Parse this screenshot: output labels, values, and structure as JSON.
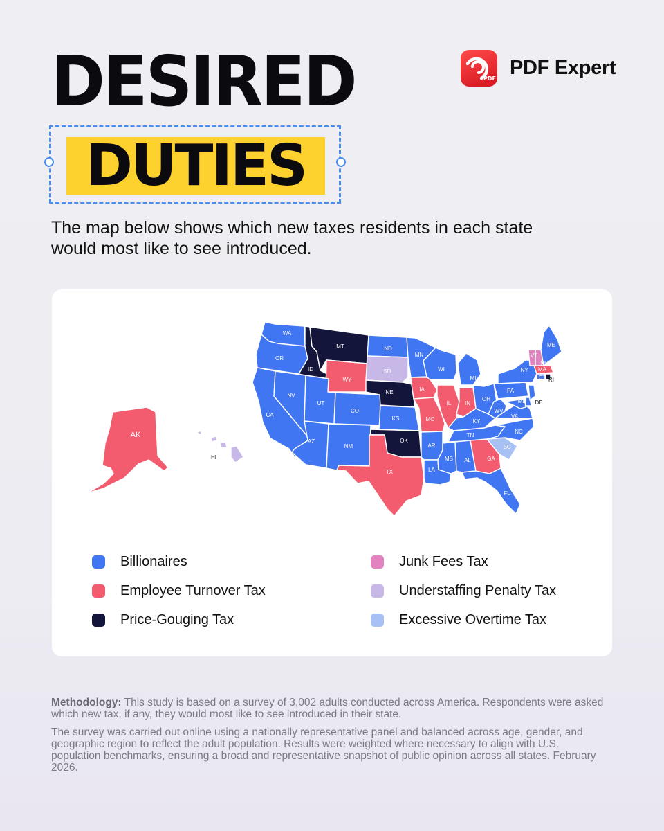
{
  "header": {
    "title_line1": "DESIRED",
    "title_line2": "DUTIES",
    "subtitle": "The map below shows which new taxes residents in each state would most like to see introduced."
  },
  "brand": {
    "name": "PDF Expert",
    "badge": "PDF"
  },
  "colors": {
    "billionaires": "#4176f3",
    "employee_turnover": "#f25c6e",
    "price_gouging": "#13163a",
    "junk_fees": "#e283c0",
    "understaffing": "#c8b8e8",
    "excessive_overtime": "#a7c1f5",
    "title_highlight": "#fdd22e",
    "selection_blue": "#4a8cf0"
  },
  "map": {
    "states": [
      {
        "abbr": "WA",
        "category": "billionaires"
      },
      {
        "abbr": "OR",
        "category": "billionaires"
      },
      {
        "abbr": "CA",
        "category": "billionaires"
      },
      {
        "abbr": "NV",
        "category": "billionaires"
      },
      {
        "abbr": "ID",
        "category": "price_gouging"
      },
      {
        "abbr": "MT",
        "category": "price_gouging"
      },
      {
        "abbr": "WY",
        "category": "employee_turnover"
      },
      {
        "abbr": "UT",
        "category": "billionaires"
      },
      {
        "abbr": "AZ",
        "category": "billionaires"
      },
      {
        "abbr": "CO",
        "category": "billionaires"
      },
      {
        "abbr": "NM",
        "category": "billionaires"
      },
      {
        "abbr": "ND",
        "category": "billionaires"
      },
      {
        "abbr": "SD",
        "category": "understaffing"
      },
      {
        "abbr": "NE",
        "category": "price_gouging"
      },
      {
        "abbr": "KS",
        "category": "billionaires"
      },
      {
        "abbr": "OK",
        "category": "price_gouging"
      },
      {
        "abbr": "TX",
        "category": "employee_turnover"
      },
      {
        "abbr": "MN",
        "category": "billionaires"
      },
      {
        "abbr": "IA",
        "category": "employee_turnover"
      },
      {
        "abbr": "MO",
        "category": "employee_turnover"
      },
      {
        "abbr": "AR",
        "category": "billionaires"
      },
      {
        "abbr": "LA",
        "category": "billionaires"
      },
      {
        "abbr": "WI",
        "category": "billionaires"
      },
      {
        "abbr": "IL",
        "category": "employee_turnover"
      },
      {
        "abbr": "MI",
        "category": "billionaires"
      },
      {
        "abbr": "IN",
        "category": "employee_turnover"
      },
      {
        "abbr": "OH",
        "category": "billionaires"
      },
      {
        "abbr": "KY",
        "category": "billionaires"
      },
      {
        "abbr": "TN",
        "category": "billionaires"
      },
      {
        "abbr": "MS",
        "category": "billionaires"
      },
      {
        "abbr": "AL",
        "category": "billionaires"
      },
      {
        "abbr": "GA",
        "category": "employee_turnover"
      },
      {
        "abbr": "FL",
        "category": "billionaires"
      },
      {
        "abbr": "SC",
        "category": "excessive_overtime"
      },
      {
        "abbr": "NC",
        "category": "billionaires"
      },
      {
        "abbr": "VA",
        "category": "billionaires"
      },
      {
        "abbr": "WV",
        "category": "billionaires"
      },
      {
        "abbr": "PA",
        "category": "billionaires"
      },
      {
        "abbr": "NY",
        "category": "billionaires"
      },
      {
        "abbr": "MD",
        "category": "billionaires"
      },
      {
        "abbr": "DE",
        "category": "billionaires"
      },
      {
        "abbr": "NJ",
        "category": "billionaires"
      },
      {
        "abbr": "CT",
        "category": "billionaires"
      },
      {
        "abbr": "RI",
        "category": "price_gouging"
      },
      {
        "abbr": "MA",
        "category": "employee_turnover"
      },
      {
        "abbr": "VT",
        "category": "junk_fees"
      },
      {
        "abbr": "NH",
        "category": "junk_fees"
      },
      {
        "abbr": "ME",
        "category": "billionaires"
      },
      {
        "abbr": "AK",
        "category": "employee_turnover"
      },
      {
        "abbr": "HI",
        "category": "understaffing"
      }
    ],
    "printed_labels": [
      "WA",
      "OR",
      "CA",
      "NV",
      "ID",
      "MT",
      "WY",
      "UT",
      "AZ",
      "CO",
      "NM",
      "ND",
      "SD",
      "NE",
      "KS",
      "OK",
      "TX",
      "MN",
      "IA",
      "MO",
      "AR",
      "LA",
      "WI",
      "IL",
      "MI",
      "IN",
      "OH",
      "KY",
      "TN",
      "MS",
      "AL",
      "GA",
      "FL",
      "SC",
      "NC",
      "VA",
      "WV",
      "MD",
      "PA",
      "NY",
      "VT",
      "NH",
      "ME",
      "MA",
      "RI",
      "CT",
      "DE",
      "AK",
      "HI"
    ]
  },
  "legend": [
    {
      "key": "billionaires",
      "label": "Billionaires"
    },
    {
      "key": "employee_turnover",
      "label": "Employee Turnover Tax"
    },
    {
      "key": "price_gouging",
      "label": "Price-Gouging Tax"
    },
    {
      "key": "junk_fees",
      "label": "Junk Fees Tax"
    },
    {
      "key": "understaffing",
      "label": "Understaffing Penalty Tax"
    },
    {
      "key": "excessive_overtime",
      "label": "Excessive Overtime Tax"
    }
  ],
  "methodology": {
    "label": "Methodology:",
    "p1": "This study is based on a survey of 3,002 adults conducted across America. Respondents were asked which new tax, if any, they would most like to see introduced in their state.",
    "p2": "The survey was carried out online using a nationally representative panel and balanced across age, gender, and geographic region to reflect the adult population. Results were weighted where necessary to align with U.S. population benchmarks, ensuring a broad and representative snapshot of public opinion across all states. February 2026."
  }
}
